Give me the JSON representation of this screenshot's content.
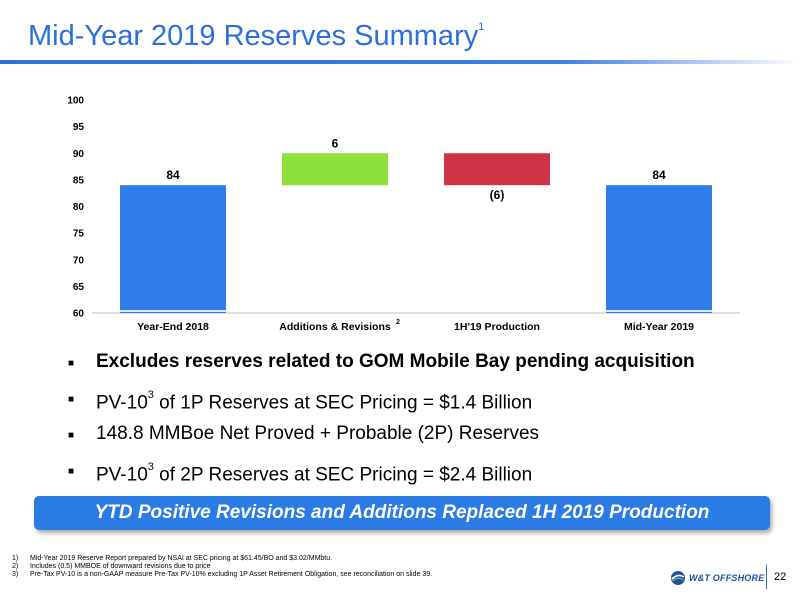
{
  "header": {
    "title": "Mid-Year 2019 Reserves Summary",
    "title_footnote": "1"
  },
  "chart_data": {
    "type": "bar",
    "variant": "waterfall",
    "categories": [
      "Year-End 2018",
      "Additions & Revisions",
      "1H'19 Production",
      "Mid-Year 2019"
    ],
    "category_superscripts": [
      "",
      "2",
      "",
      ""
    ],
    "values": [
      84,
      6,
      -6,
      84
    ],
    "data_labels": [
      "84",
      "6",
      "(6)",
      "84"
    ],
    "bar_colors": [
      "#2f7de8",
      "#8ee03a",
      "#cf3346",
      "#2f7de8"
    ],
    "ylim": [
      60,
      100
    ],
    "yticks": [
      "60",
      "65",
      "70",
      "75",
      "80",
      "85",
      "90",
      "95",
      "100"
    ],
    "grid": false,
    "legend": "none"
  },
  "bullets": [
    {
      "pre": "Excludes reserves related to GOM Mobile Bay pending acquisition",
      "sup": "",
      "post": "",
      "bold": true
    },
    {
      "pre": "PV-10",
      "sup": "3",
      "post": " of 1P Reserves at SEC Pricing = $1.4 Billion",
      "bold": false
    },
    {
      "pre": "148.8 MMBoe Net Proved + Probable (2P) Reserves",
      "sup": "",
      "post": "",
      "bold": false
    },
    {
      "pre": "PV-10",
      "sup": "3",
      "post": " of 2P Reserves at SEC Pricing = $2.4 Billion",
      "bold": false
    }
  ],
  "bullet_marker": "■",
  "banner": {
    "text": "YTD Positive Revisions and Additions Replaced 1H 2019 Production"
  },
  "footnotes": [
    {
      "num": "1)",
      "text": "Mid-Year 2019 Reserve Report prepared by NSAI at SEC pricing at $61.45/BO and $3.02/MMbtu."
    },
    {
      "num": "2)",
      "text": "Includes (0.5) MMBOE of downward revisions due to price"
    },
    {
      "num": "3)",
      "text": "Pre-Tax PV-10 is a non-GAAP measure Pre-Tax PV-10% excluding 1P Asset Retirement Obligation, see reconciliation on slide 39."
    }
  ],
  "logo": {
    "text": "W&T OFFSHORE",
    "icon": "globe-swirl-icon"
  },
  "page_number": "22"
}
